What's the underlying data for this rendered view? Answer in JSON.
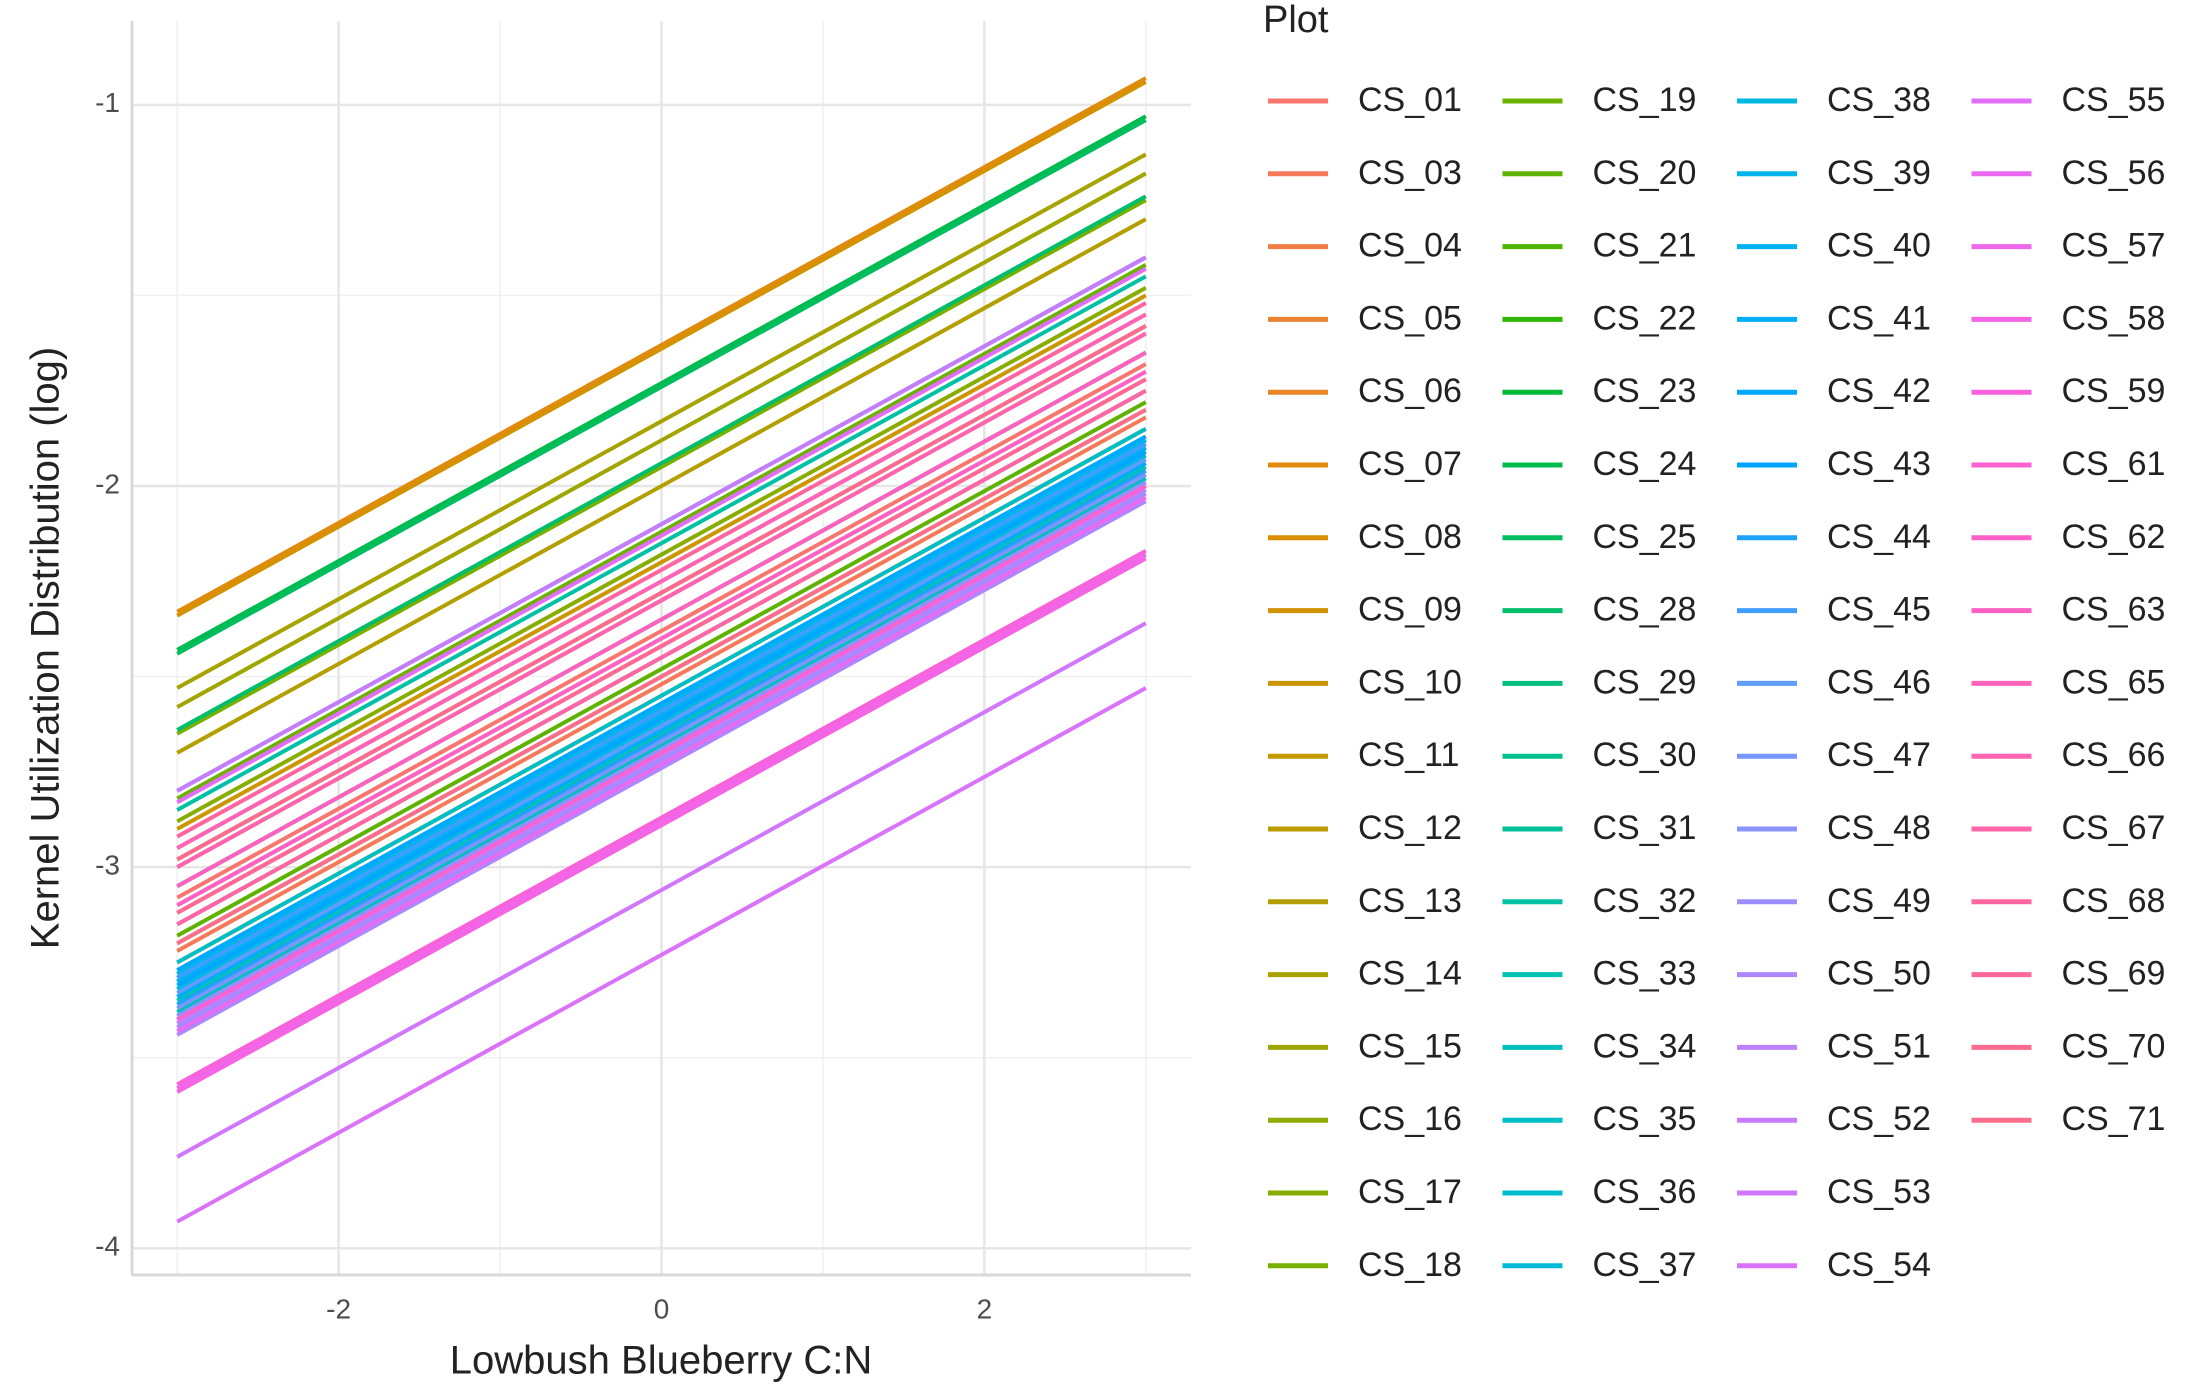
{
  "chart_data": {
    "type": "line",
    "x_label": "Lowbush Blueberry C:N",
    "y_label": "Kernel Utilization Distribution (log)",
    "legend_title": "Plot",
    "x": [
      -3,
      3
    ],
    "xlim": [
      -3.28,
      3.28
    ],
    "xticks": [
      -2,
      0,
      2
    ],
    "xminor": [
      -3,
      -1,
      1,
      3
    ],
    "ylim": [
      -4.07,
      -0.78
    ],
    "yticks": [
      -4,
      -3,
      -2,
      -1
    ],
    "yminor": [
      -3.5,
      -2.5,
      -1.5
    ],
    "grid": true,
    "legend": "right",
    "series": [
      {
        "name": "CS_01",
        "color": "#F8766D",
        "values": [
          -3.08,
          -1.68
        ]
      },
      {
        "name": "CS_03",
        "color": "#F47A5A",
        "values": [
          -3.22,
          -1.82
        ]
      },
      {
        "name": "CS_04",
        "color": "#EF7F47",
        "values": [
          -3.3,
          -1.9
        ]
      },
      {
        "name": "CS_05",
        "color": "#EA8331",
        "values": [
          -3.12,
          -1.72
        ]
      },
      {
        "name": "CS_06",
        "color": "#E88526",
        "values": [
          -3.25,
          -1.85
        ]
      },
      {
        "name": "CS_07",
        "color": "#E28A0C",
        "values": [
          -2.33,
          -0.93
        ]
      },
      {
        "name": "CS_08",
        "color": "#DB8E00",
        "values": [
          -3.05,
          -1.65
        ]
      },
      {
        "name": "CS_09",
        "color": "#D39200",
        "values": [
          -2.34,
          -0.94
        ]
      },
      {
        "name": "CS_10",
        "color": "#CC9600",
        "values": [
          -2.9,
          -1.5
        ]
      },
      {
        "name": "CS_11",
        "color": "#C49A00",
        "values": [
          -2.95,
          -1.55
        ]
      },
      {
        "name": "CS_12",
        "color": "#BC9D00",
        "values": [
          -3.0,
          -1.6
        ]
      },
      {
        "name": "CS_13",
        "color": "#B39F00",
        "values": [
          -2.7,
          -1.3
        ]
      },
      {
        "name": "CS_14",
        "color": "#A8A300",
        "values": [
          -2.53,
          -1.13
        ]
      },
      {
        "name": "CS_15",
        "color": "#9FA600",
        "values": [
          -2.58,
          -1.18
        ]
      },
      {
        "name": "CS_16",
        "color": "#93AA00",
        "values": [
          -3.1,
          -1.7
        ]
      },
      {
        "name": "CS_17",
        "color": "#87AD00",
        "values": [
          -2.88,
          -1.48
        ]
      },
      {
        "name": "CS_18",
        "color": "#79B000",
        "values": [
          -2.65,
          -1.25
        ]
      },
      {
        "name": "CS_19",
        "color": "#6BB100",
        "values": [
          -2.82,
          -1.42
        ]
      },
      {
        "name": "CS_20",
        "color": "#5EB300",
        "values": [
          -3.18,
          -1.78
        ]
      },
      {
        "name": "CS_21",
        "color": "#4BB500",
        "values": [
          -2.98,
          -1.58
        ]
      },
      {
        "name": "CS_22",
        "color": "#2FB700",
        "values": [
          -3.15,
          -1.75
        ]
      },
      {
        "name": "CS_23",
        "color": "#00BA38",
        "values": [
          -3.2,
          -1.8
        ]
      },
      {
        "name": "CS_24",
        "color": "#00BB4E",
        "values": [
          -2.43,
          -1.03
        ]
      },
      {
        "name": "CS_25",
        "color": "#00BD5F",
        "values": [
          -2.44,
          -1.04
        ]
      },
      {
        "name": "CS_28",
        "color": "#00BE6C",
        "values": [
          -2.64,
          -1.24
        ]
      },
      {
        "name": "CS_29",
        "color": "#00BF7D",
        "values": [
          -2.8,
          -1.4
        ]
      },
      {
        "name": "CS_30",
        "color": "#00C08B",
        "values": [
          -3.05,
          -1.65
        ]
      },
      {
        "name": "CS_31",
        "color": "#00C199",
        "values": [
          -3.28,
          -1.88
        ]
      },
      {
        "name": "CS_32",
        "color": "#00C1A6",
        "values": [
          -2.85,
          -1.45
        ]
      },
      {
        "name": "CS_33",
        "color": "#00C1B2",
        "values": [
          -3.35,
          -1.95
        ]
      },
      {
        "name": "CS_34",
        "color": "#00C0BC",
        "values": [
          -3.38,
          -1.98
        ]
      },
      {
        "name": "CS_35",
        "color": "#00BFC4",
        "values": [
          -3.25,
          -1.85
        ]
      },
      {
        "name": "CS_36",
        "color": "#00BDCE",
        "values": [
          -3.4,
          -2.0
        ]
      },
      {
        "name": "CS_37",
        "color": "#00BBD8",
        "values": [
          -3.3,
          -1.9
        ]
      },
      {
        "name": "CS_38",
        "color": "#00B9E3",
        "values": [
          -3.32,
          -1.92
        ]
      },
      {
        "name": "CS_39",
        "color": "#00B6EA",
        "values": [
          -3.28,
          -1.88
        ]
      },
      {
        "name": "CS_40",
        "color": "#00B2F2",
        "values": [
          -3.3,
          -1.9
        ]
      },
      {
        "name": "CS_41",
        "color": "#00ADFA",
        "values": [
          -3.34,
          -1.94
        ]
      },
      {
        "name": "CS_42",
        "color": "#00A9FF",
        "values": [
          -3.27,
          -1.87
        ]
      },
      {
        "name": "CS_43",
        "color": "#00A5FF",
        "values": [
          -3.31,
          -1.91
        ]
      },
      {
        "name": "CS_44",
        "color": "#1FA1FF",
        "values": [
          -3.36,
          -1.96
        ]
      },
      {
        "name": "CS_45",
        "color": "#3F9EFF",
        "values": [
          -3.29,
          -1.89
        ]
      },
      {
        "name": "CS_46",
        "color": "#619CFF",
        "values": [
          -3.33,
          -1.93
        ]
      },
      {
        "name": "CS_47",
        "color": "#7797FF",
        "values": [
          -3.37,
          -1.97
        ]
      },
      {
        "name": "CS_48",
        "color": "#8B93FF",
        "values": [
          -3.39,
          -1.99
        ]
      },
      {
        "name": "CS_49",
        "color": "#9D8EFF",
        "values": [
          -3.42,
          -2.02
        ]
      },
      {
        "name": "CS_50",
        "color": "#AE87FF",
        "values": [
          -3.44,
          -2.04
        ]
      },
      {
        "name": "CS_51",
        "color": "#BC81FF",
        "values": [
          -3.41,
          -2.01
        ]
      },
      {
        "name": "CS_52",
        "color": "#C77CFF",
        "values": [
          -2.8,
          -1.4
        ]
      },
      {
        "name": "CS_53",
        "color": "#D177FD",
        "values": [
          -3.76,
          -2.36
        ]
      },
      {
        "name": "CS_54",
        "color": "#DB72FB",
        "values": [
          -3.93,
          -2.53
        ]
      },
      {
        "name": "CS_55",
        "color": "#E26EF7",
        "values": [
          -2.83,
          -1.43
        ]
      },
      {
        "name": "CS_56",
        "color": "#E96AF0",
        "values": [
          -3.43,
          -2.03
        ]
      },
      {
        "name": "CS_57",
        "color": "#EF67EA",
        "values": [
          -3.58,
          -2.18
        ]
      },
      {
        "name": "CS_58",
        "color": "#F564E3",
        "values": [
          -3.59,
          -2.19
        ]
      },
      {
        "name": "CS_59",
        "color": "#F962DA",
        "values": [
          -3.57,
          -2.17
        ]
      },
      {
        "name": "CS_61",
        "color": "#FC61D0",
        "values": [
          -3.4,
          -2.0
        ]
      },
      {
        "name": "CS_62",
        "color": "#FF61C9",
        "values": [
          -3.1,
          -1.7
        ]
      },
      {
        "name": "CS_63",
        "color": "#FF61C3",
        "values": [
          -3.05,
          -1.65
        ]
      },
      {
        "name": "CS_65",
        "color": "#FF62BA",
        "values": [
          -2.95,
          -1.55
        ]
      },
      {
        "name": "CS_66",
        "color": "#FF63B1",
        "values": [
          -3.0,
          -1.6
        ]
      },
      {
        "name": "CS_67",
        "color": "#FF65A8",
        "values": [
          -3.15,
          -1.75
        ]
      },
      {
        "name": "CS_68",
        "color": "#FF669F",
        "values": [
          -2.92,
          -1.52
        ]
      },
      {
        "name": "CS_69",
        "color": "#FF6898",
        "values": [
          -3.12,
          -1.72
        ]
      },
      {
        "name": "CS_70",
        "color": "#FF6A91",
        "values": [
          -2.98,
          -1.58
        ]
      },
      {
        "name": "CS_71",
        "color": "#FF6C8C",
        "values": [
          -3.2,
          -1.8
        ]
      }
    ]
  }
}
